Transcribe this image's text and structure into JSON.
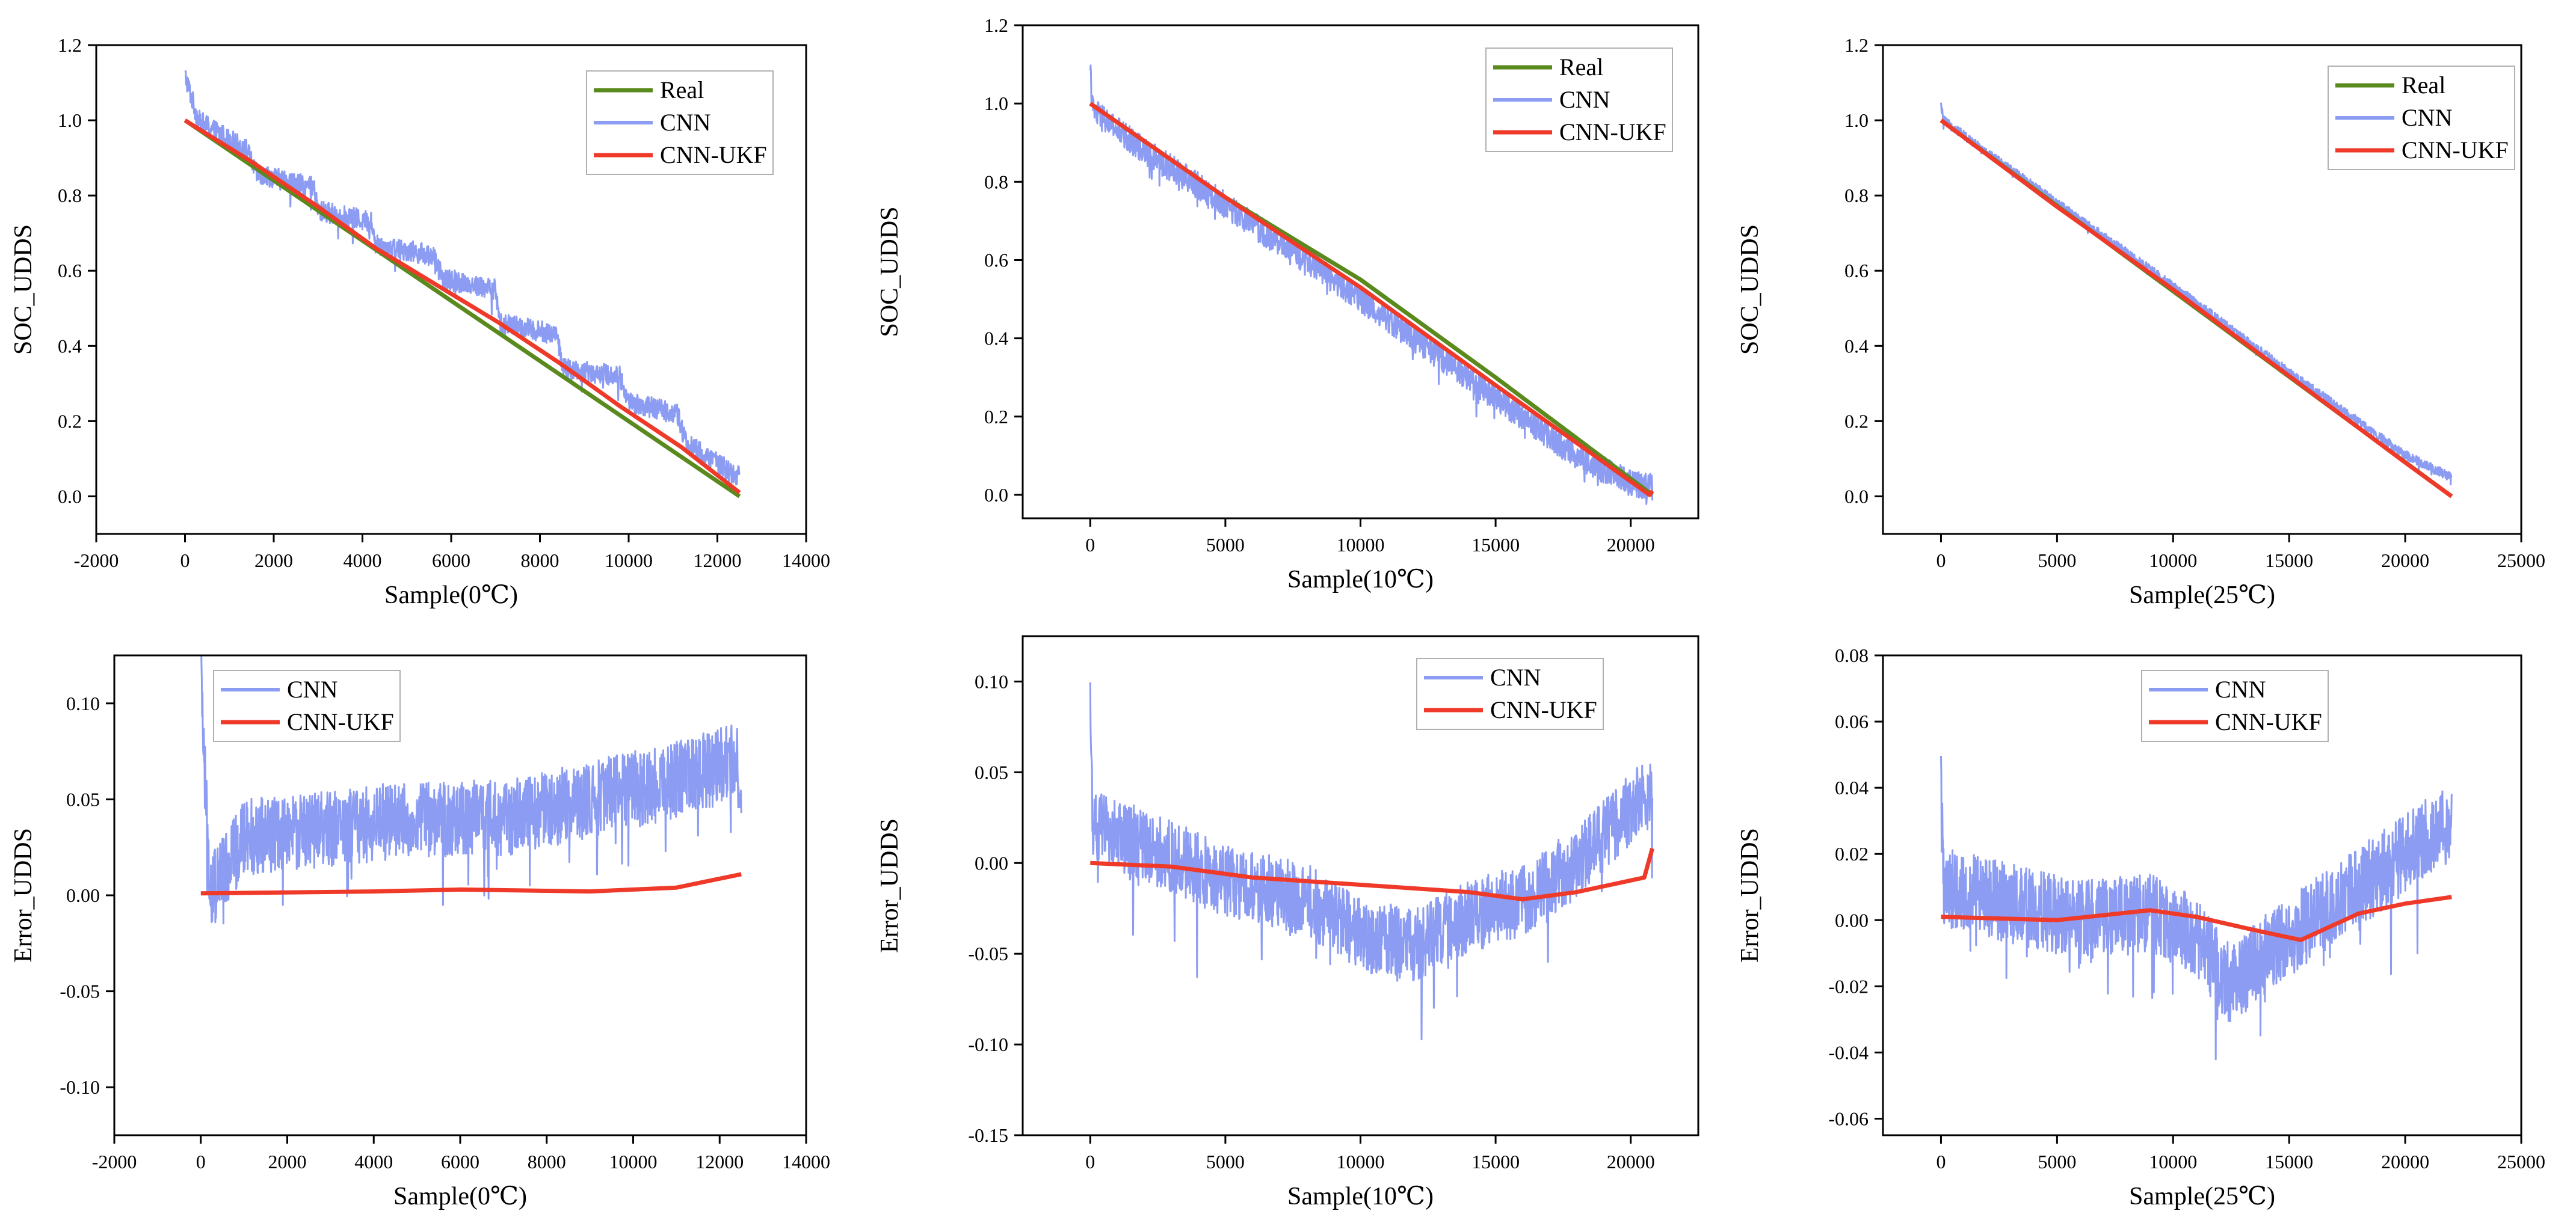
{
  "figure": {
    "colors": {
      "real": "#5a8a1e",
      "cnn": "#8b9cf2",
      "ukf": "#ef3a2a",
      "axis": "#000000"
    },
    "legend_labels": {
      "real": "Real",
      "cnn": "CNN",
      "ukf": "CNN-UKF"
    }
  },
  "chart_data": [
    {
      "id": "p1",
      "type": "line",
      "title": "",
      "xlabel": "Sample(0℃)",
      "ylabel": "SOC_UDDS",
      "xlim": [
        -2000,
        14000
      ],
      "ylim": [
        -0.1,
        1.2
      ],
      "xticks": [
        -2000,
        0,
        2000,
        4000,
        6000,
        8000,
        10000,
        12000,
        14000
      ],
      "yticks": [
        0.0,
        0.2,
        0.4,
        0.6,
        0.8,
        1.0,
        1.2
      ],
      "ytick_decimals": 1,
      "legend": {
        "position": "top-right",
        "entries": [
          "Real",
          "CNN",
          "CNN-UKF"
        ]
      },
      "series": [
        {
          "name": "CNN",
          "key": "cnn",
          "x": [
            0,
            300,
            1400,
            1600,
            2900,
            3000,
            4200,
            4300,
            5600,
            5800,
            7000,
            7100,
            8400,
            8500,
            9800,
            10000,
            11100,
            11300,
            12500
          ],
          "y": [
            1.12,
            1.0,
            0.92,
            0.86,
            0.82,
            0.76,
            0.73,
            0.67,
            0.64,
            0.58,
            0.55,
            0.46,
            0.43,
            0.34,
            0.32,
            0.25,
            0.22,
            0.14,
            0.05
          ],
          "noise": 0.028
        },
        {
          "name": "Real",
          "key": "real",
          "x": [
            0,
            12500
          ],
          "y": [
            1.0,
            0.0
          ],
          "noise": 0
        },
        {
          "name": "CNN-UKF",
          "key": "ukf",
          "x": [
            0,
            1500,
            3000,
            4300,
            5700,
            7100,
            8500,
            9800,
            11200,
            12500
          ],
          "y": [
            1.0,
            0.89,
            0.77,
            0.66,
            0.56,
            0.46,
            0.35,
            0.24,
            0.13,
            0.01
          ],
          "noise": 0
        }
      ]
    },
    {
      "id": "p2",
      "type": "line",
      "title": "",
      "xlabel": "Sample(10℃)",
      "ylabel": "SOC_UDDS",
      "xlim": [
        -2500,
        22500
      ],
      "ylim": [
        -0.06,
        1.2
      ],
      "xticks": [
        0,
        5000,
        10000,
        15000,
        20000
      ],
      "yticks": [
        0.0,
        0.2,
        0.4,
        0.6,
        0.8,
        1.0,
        1.2
      ],
      "ytick_decimals": 1,
      "legend": {
        "position": "top-right",
        "entries": [
          "Real",
          "CNN",
          "CNN-UKF"
        ]
      },
      "series": [
        {
          "name": "CNN",
          "key": "cnn",
          "x": [
            0,
            100,
            2000,
            4000,
            6000,
            8000,
            10000,
            12000,
            14000,
            16000,
            18000,
            20000,
            20800
          ],
          "y": [
            1.08,
            0.98,
            0.88,
            0.79,
            0.69,
            0.6,
            0.5,
            0.4,
            0.3,
            0.2,
            0.1,
            0.03,
            0.02
          ],
          "noise": 0.035
        },
        {
          "name": "Real",
          "key": "real",
          "x": [
            0,
            5000,
            10000,
            15000,
            20800
          ],
          "y": [
            1.0,
            0.76,
            0.55,
            0.3,
            0.0
          ],
          "noise": 0
        },
        {
          "name": "CNN-UKF",
          "key": "ukf",
          "x": [
            0,
            5000,
            10000,
            15000,
            20700,
            20800
          ],
          "y": [
            1.0,
            0.76,
            0.53,
            0.28,
            0.0,
            0.01
          ],
          "noise": 0
        }
      ]
    },
    {
      "id": "p3",
      "type": "line",
      "title": "",
      "xlabel": "Sample(25℃)",
      "ylabel": "SOC_UDDS",
      "xlim": [
        -2500,
        25000
      ],
      "ylim": [
        -0.1,
        1.2
      ],
      "xticks": [
        0,
        5000,
        10000,
        15000,
        20000,
        25000
      ],
      "yticks": [
        0.0,
        0.2,
        0.4,
        0.6,
        0.8,
        1.0,
        1.2
      ],
      "ytick_decimals": 1,
      "legend": {
        "position": "top-right",
        "entries": [
          "Real",
          "CNN",
          "CNN-UKF"
        ]
      },
      "series": [
        {
          "name": "CNN",
          "key": "cnn",
          "x": [
            0,
            100,
            5000,
            10000,
            15000,
            20000,
            22000
          ],
          "y": [
            1.04,
            1.0,
            0.78,
            0.56,
            0.33,
            0.11,
            0.05
          ],
          "noise": 0.012
        },
        {
          "name": "Real",
          "key": "real",
          "x": [
            0,
            22000
          ],
          "y": [
            1.0,
            0.0
          ],
          "noise": 0
        },
        {
          "name": "CNN-UKF",
          "key": "ukf",
          "x": [
            0,
            5000,
            10000,
            15000,
            20000,
            22000
          ],
          "y": [
            1.0,
            0.77,
            0.55,
            0.32,
            0.09,
            0.0
          ],
          "noise": 0
        }
      ]
    },
    {
      "id": "p4",
      "type": "line",
      "title": "",
      "xlabel": "Sample(0℃)",
      "ylabel": "Error_UDDS",
      "xlim": [
        -2000,
        14000
      ],
      "ylim": [
        -0.125,
        0.125
      ],
      "xticks": [
        -2000,
        0,
        2000,
        4000,
        6000,
        8000,
        10000,
        12000,
        14000
      ],
      "yticks": [
        -0.1,
        -0.05,
        0.0,
        0.05,
        0.1
      ],
      "ytick_decimals": 2,
      "legend": {
        "position": "top-left",
        "entries": [
          "CNN",
          "CNN-UKF"
        ]
      },
      "series": [
        {
          "name": "CNN",
          "key": "cnn",
          "x": [
            0,
            200,
            1000,
            3000,
            5000,
            7000,
            9000,
            11000,
            12400,
            12500
          ],
          "y": [
            0.12,
            0.0,
            0.03,
            0.035,
            0.04,
            0.04,
            0.05,
            0.06,
            0.07,
            0.05
          ],
          "noise": 0.02
        },
        {
          "name": "CNN-UKF",
          "key": "ukf",
          "x": [
            0,
            4000,
            6000,
            9000,
            11000,
            12500
          ],
          "y": [
            0.001,
            0.002,
            0.003,
            0.002,
            0.004,
            0.011
          ],
          "noise": 0
        }
      ]
    },
    {
      "id": "p5",
      "type": "line",
      "title": "",
      "xlabel": "Sample(10℃)",
      "ylabel": "Error_UDDS",
      "xlim": [
        -2500,
        22500
      ],
      "ylim": [
        -0.15,
        0.125
      ],
      "xticks": [
        0,
        5000,
        10000,
        15000,
        20000
      ],
      "yticks": [
        -0.15,
        -0.1,
        -0.05,
        0.0,
        0.05,
        0.1
      ],
      "ytick_decimals": 2,
      "legend": {
        "position": "top-right",
        "entries": [
          "CNN",
          "CNN-UKF"
        ]
      },
      "series": [
        {
          "name": "CNN",
          "key": "cnn",
          "x": [
            0,
            100,
            2000,
            5000,
            8000,
            10000,
            12000,
            14000,
            16000,
            18000,
            20000,
            20800
          ],
          "y": [
            0.085,
            0.02,
            0.01,
            -0.01,
            -0.02,
            -0.04,
            -0.045,
            -0.03,
            -0.02,
            0.0,
            0.03,
            0.04
          ],
          "noise": 0.02
        },
        {
          "name": "CNN-UKF",
          "key": "ukf",
          "x": [
            0,
            3000,
            6000,
            10000,
            14000,
            16000,
            18000,
            20500,
            20800
          ],
          "y": [
            0.0,
            -0.002,
            -0.008,
            -0.012,
            -0.016,
            -0.02,
            -0.016,
            -0.008,
            0.008
          ],
          "noise": 0
        }
      ]
    },
    {
      "id": "p6",
      "type": "line",
      "title": "",
      "xlabel": "Sample(25℃)",
      "ylabel": "Error_UDDS",
      "xlim": [
        -2500,
        25000
      ],
      "ylim": [
        -0.065,
        0.08
      ],
      "xticks": [
        0,
        5000,
        10000,
        15000,
        20000,
        25000
      ],
      "yticks": [
        -0.06,
        -0.04,
        -0.02,
        0.0,
        0.02,
        0.04,
        0.06,
        0.08
      ],
      "ytick_decimals": 2,
      "legend": {
        "position": "top-left",
        "entries": [
          "CNN",
          "CNN-UKF"
        ]
      },
      "series": [
        {
          "name": "CNN",
          "key": "cnn",
          "x": [
            0,
            100,
            3000,
            6000,
            9000,
            11000,
            12500,
            14000,
            16000,
            18000,
            20000,
            22000
          ],
          "y": [
            0.04,
            0.01,
            0.005,
            0.0,
            0.002,
            -0.005,
            -0.02,
            -0.01,
            0.0,
            0.01,
            0.02,
            0.03
          ],
          "noise": 0.012
        },
        {
          "name": "CNN-UKF",
          "key": "ukf",
          "x": [
            0,
            5000,
            9000,
            11000,
            13500,
            15500,
            18000,
            20000,
            22000
          ],
          "y": [
            0.001,
            0.0,
            0.003,
            0.001,
            -0.003,
            -0.006,
            0.002,
            0.005,
            0.007
          ],
          "noise": 0
        }
      ]
    }
  ]
}
